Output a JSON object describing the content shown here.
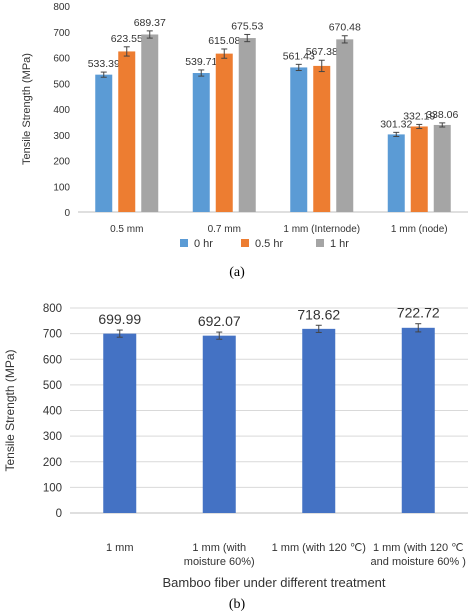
{
  "chart_data": [
    {
      "type": "bar",
      "caption": "(a)",
      "ylabel": "Tensile Strength (MPa)",
      "xlabel": "",
      "ylim": [
        0,
        800
      ],
      "yticks": [
        0,
        100,
        200,
        300,
        400,
        500,
        600,
        700,
        800
      ],
      "grid": false,
      "error_bars": true,
      "legend_position": "bottom",
      "categories": [
        "0.5 mm",
        "0.7 mm",
        "1  mm  (Internode)",
        "1  mm  (node)"
      ],
      "series": [
        {
          "name": "0 hr",
          "color": "#5b9bd5",
          "values": [
            533.39,
            539.71,
            561.43,
            301.32
          ],
          "errors": [
            10,
            12,
            12,
            8
          ],
          "labels": [
            "533.39",
            "539.71",
            "561.43",
            "301.32"
          ]
        },
        {
          "name": "0.5 hr",
          "color": "#ed7d31",
          "values": [
            623.55,
            615.08,
            567.38,
            332.19
          ],
          "errors": [
            18,
            18,
            22,
            8
          ],
          "labels": [
            "623.55",
            "615.08",
            "567.38",
            "332.19"
          ]
        },
        {
          "name": "1 hr",
          "color": "#a5a5a5",
          "values": [
            689.37,
            675.53,
            670.48,
            338.06
          ],
          "errors": [
            14,
            14,
            14,
            8
          ],
          "labels": [
            "689.37",
            "675.53",
            "670.48",
            "338.06"
          ]
        }
      ]
    },
    {
      "type": "bar",
      "caption": "(b)",
      "ylabel": "Tensile Strength (MPa)",
      "xlabel": "Bamboo fiber under different treatment",
      "ylim": [
        0,
        800
      ],
      "yticks": [
        0,
        100,
        200,
        300,
        400,
        500,
        600,
        700,
        800
      ],
      "grid": true,
      "error_bars": true,
      "categories": [
        [
          "1 mm"
        ],
        [
          "1 mm (with",
          "moisture 60%)"
        ],
        [
          "1 mm (with 120 ℃)"
        ],
        [
          "1 mm (with 120 ℃",
          "and moisture 60% )"
        ]
      ],
      "series": [
        {
          "name": "",
          "color": "#4472c4",
          "values": [
            699.99,
            692.07,
            718.62,
            722.72
          ],
          "errors": [
            14,
            14,
            14,
            16
          ],
          "labels": [
            "699.99",
            "692.07",
            "718.62",
            "722.72"
          ]
        }
      ]
    }
  ]
}
